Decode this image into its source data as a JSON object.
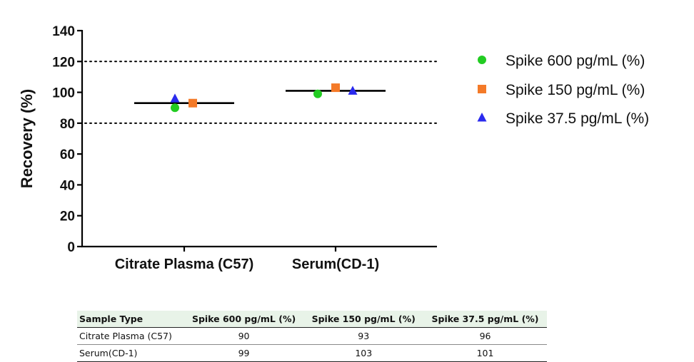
{
  "chart_data": {
    "type": "scatter",
    "ylabel": "Recovery (%)",
    "xlabel": "",
    "ylim": [
      0,
      140
    ],
    "yticks": [
      0,
      20,
      40,
      60,
      80,
      100,
      120,
      140
    ],
    "categories": [
      "Citrate Plasma (C57)",
      "Serum(CD-1)"
    ],
    "reference_lines": [
      80,
      120
    ],
    "means": [
      93,
      101
    ],
    "series": [
      {
        "name": "Spike 600 pg/mL (%)",
        "marker": "circle",
        "color": "#22cc22",
        "values": [
          90,
          99
        ]
      },
      {
        "name": "Spike 150 pg/mL (%)",
        "marker": "square",
        "color": "#f47a28",
        "values": [
          93,
          103
        ]
      },
      {
        "name": "Spike 37.5 pg/mL (%)",
        "marker": "triangle",
        "color": "#2a2aee",
        "values": [
          96,
          101
        ]
      }
    ],
    "legend_position": "right",
    "grid": false
  },
  "table": {
    "headers": [
      "Sample Type",
      "Spike 600 pg/mL (%)",
      "Spike 150 pg/mL (%)",
      "Spike 37.5 pg/mL (%)"
    ],
    "rows": [
      [
        "Citrate Plasma (C57)",
        "90",
        "93",
        "96"
      ],
      [
        "Serum(CD-1)",
        "99",
        "103",
        "101"
      ]
    ]
  }
}
